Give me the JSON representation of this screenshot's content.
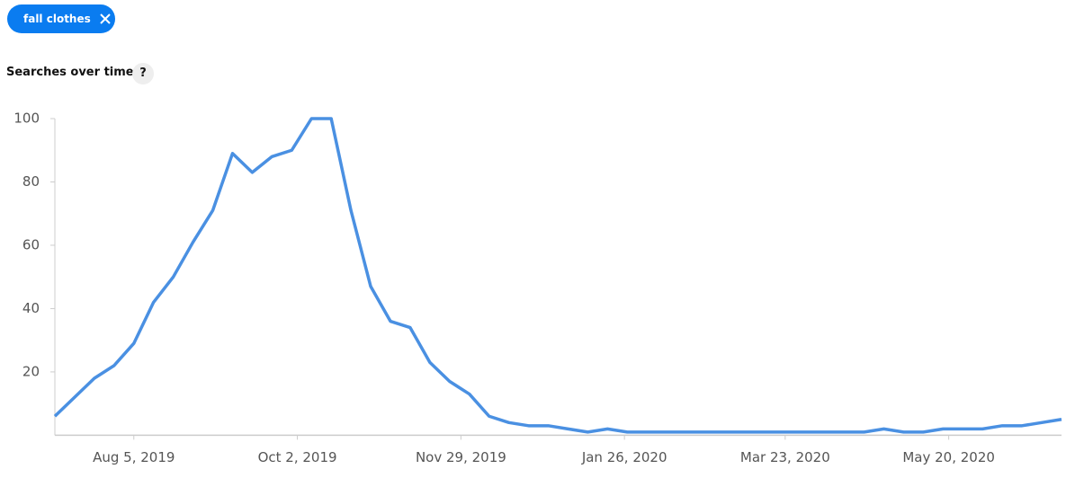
{
  "chip": {
    "label": "fall clothes"
  },
  "section_title": "Searches over time",
  "help_icon": "?",
  "chart_data": {
    "type": "line",
    "x": [
      "2019-07-08",
      "2019-07-15",
      "2019-07-22",
      "2019-07-29",
      "2019-08-05",
      "2019-08-12",
      "2019-08-19",
      "2019-08-26",
      "2019-09-02",
      "2019-09-09",
      "2019-09-16",
      "2019-09-23",
      "2019-09-30",
      "2019-10-07",
      "2019-10-14",
      "2019-10-21",
      "2019-10-28",
      "2019-11-04",
      "2019-11-11",
      "2019-11-18",
      "2019-11-25",
      "2019-12-02",
      "2019-12-09",
      "2019-12-16",
      "2019-12-23",
      "2019-12-30",
      "2020-01-06",
      "2020-01-13",
      "2020-01-20",
      "2020-01-27",
      "2020-02-03",
      "2020-02-10",
      "2020-02-17",
      "2020-02-24",
      "2020-03-02",
      "2020-03-09",
      "2020-03-16",
      "2020-03-23",
      "2020-03-30",
      "2020-04-06",
      "2020-04-13",
      "2020-04-20",
      "2020-04-27",
      "2020-05-04",
      "2020-05-11",
      "2020-05-18",
      "2020-05-25",
      "2020-06-01",
      "2020-06-08",
      "2020-06-15",
      "2020-06-22",
      "2020-06-29"
    ],
    "series": [
      {
        "name": "fall clothes",
        "color": "#4a90e2",
        "values": [
          6,
          12,
          18,
          22,
          29,
          42,
          50,
          61,
          71,
          89,
          83,
          88,
          90,
          100,
          100,
          71,
          47,
          36,
          34,
          23,
          17,
          13,
          6,
          4,
          3,
          3,
          2,
          1,
          2,
          1,
          1,
          1,
          1,
          1,
          1,
          1,
          1,
          1,
          1,
          1,
          1,
          1,
          2,
          1,
          1,
          2,
          2,
          2,
          3,
          3,
          4,
          5
        ]
      }
    ],
    "xlim": [
      "2019-07-08",
      "2020-06-29"
    ],
    "xticks": [
      {
        "value": "2019-08-05",
        "label": "Aug 5, 2019"
      },
      {
        "value": "2019-10-02",
        "label": "Oct 2, 2019"
      },
      {
        "value": "2019-11-29",
        "label": "Nov 29, 2019"
      },
      {
        "value": "2020-01-26",
        "label": "Jan 26, 2020"
      },
      {
        "value": "2020-03-23",
        "label": "Mar 23, 2020"
      },
      {
        "value": "2020-05-20",
        "label": "May 20, 2020"
      }
    ],
    "ylim": [
      0,
      100
    ],
    "yticks": [
      20,
      40,
      60,
      80,
      100
    ],
    "grid": false
  }
}
